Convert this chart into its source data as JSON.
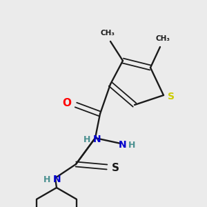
{
  "background_color": "#ebebeb",
  "bond_color": "#1a1a1a",
  "atom_colors": {
    "O": "#ff0000",
    "N": "#0000cd",
    "N_H": "#4a9090",
    "S_ring": "#cccc00",
    "S_thio": "#1a1a1a",
    "C": "#1a1a1a"
  },
  "figsize": [
    3.0,
    3.0
  ],
  "dpi": 100,
  "xlim": [
    0,
    300
  ],
  "ylim": [
    0,
    300
  ]
}
